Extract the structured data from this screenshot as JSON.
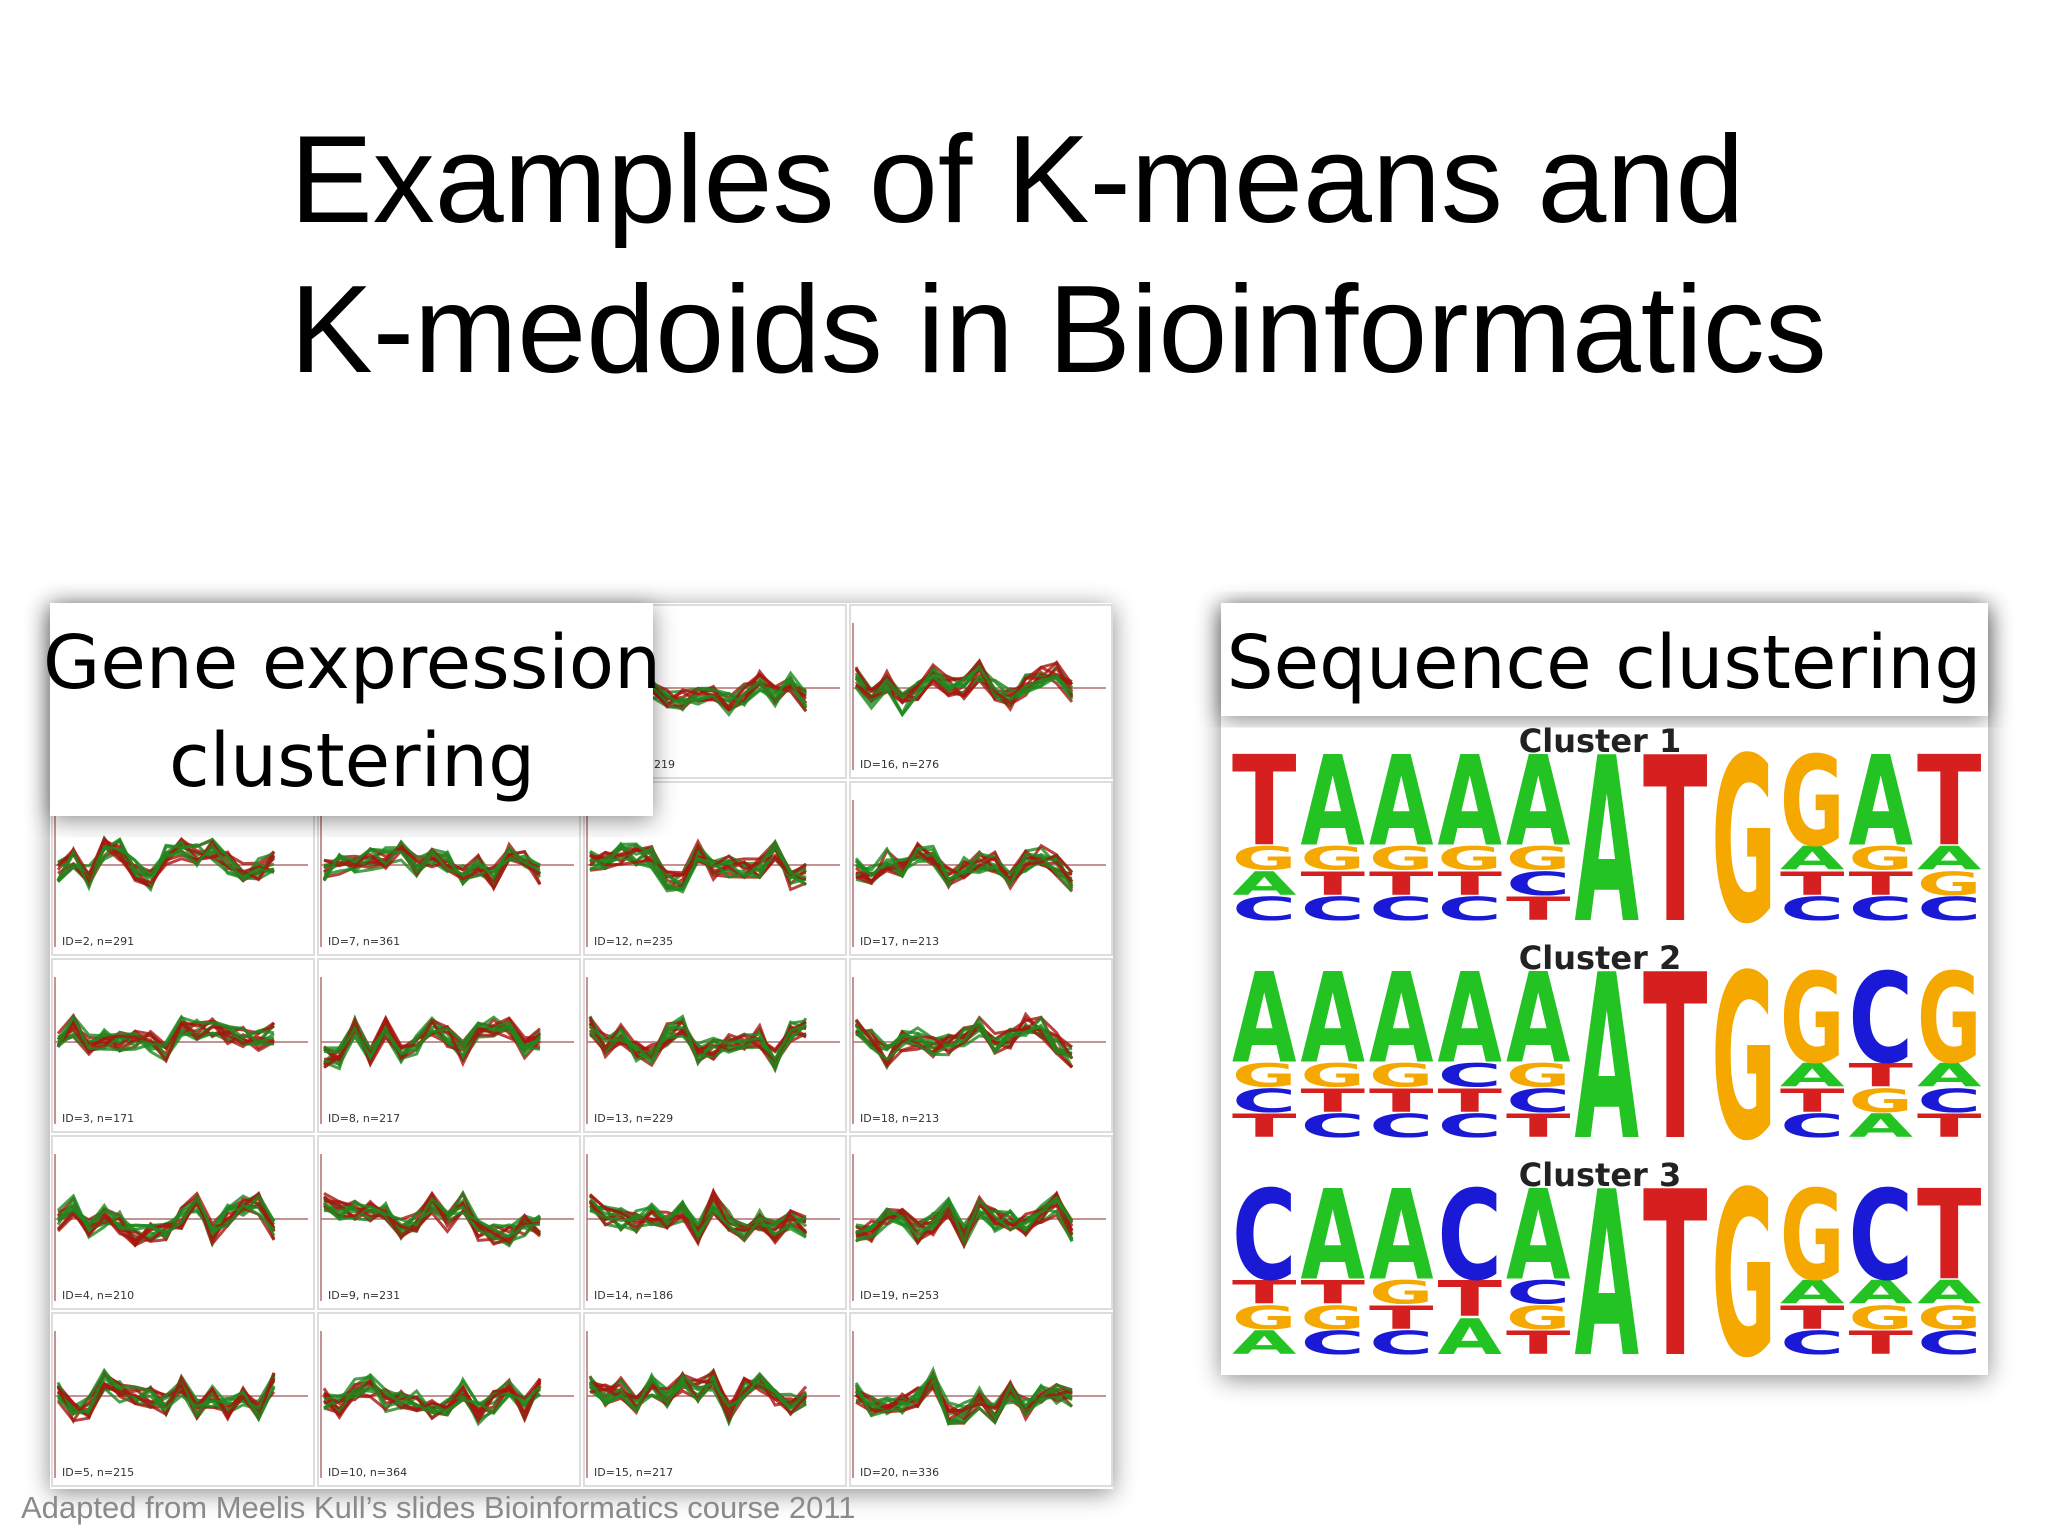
{
  "title": {
    "lines": [
      "Examples of K-means and",
      "K-medoids in Bioinformatics"
    ]
  },
  "left_panel": {
    "heading": {
      "lines": [
        "Gene expression",
        "clustering"
      ]
    },
    "cell_labels": [
      [
        null,
        null,
        "219",
        "ID=16, n=276"
      ],
      [
        "ID=2, n=291",
        "ID=7, n=361",
        "ID=12, n=235",
        "ID=17, n=213"
      ],
      [
        "ID=3, n=171",
        "ID=8, n=217",
        "ID=13, n=229",
        "ID=18, n=213"
      ],
      [
        "ID=4, n=210",
        "ID=9, n=231",
        "ID=14, n=186",
        "ID=19, n=253"
      ],
      [
        "ID=5, n=215",
        "ID=10, n=364",
        "ID=15, n=217",
        "ID=20, n=336"
      ]
    ]
  },
  "right_panel": {
    "heading": "Sequence clustering",
    "clusters": [
      {
        "label": "Cluster 1",
        "columns": [
          [
            "T",
            "G",
            "A",
            "C"
          ],
          [
            "A",
            "G",
            "T",
            "C"
          ],
          [
            "A",
            "G",
            "T",
            "C"
          ],
          [
            "A",
            "G",
            "T",
            "C"
          ],
          [
            "A",
            "G",
            "C",
            "T"
          ],
          [
            "A"
          ],
          [
            "T"
          ],
          [
            "G"
          ],
          [
            "G",
            "A",
            "T",
            "C"
          ],
          [
            "A",
            "G",
            "T",
            "C"
          ],
          [
            "T",
            "A",
            "G",
            "C"
          ]
        ]
      },
      {
        "label": "Cluster 2",
        "columns": [
          [
            "A",
            "G",
            "C",
            "T"
          ],
          [
            "A",
            "G",
            "T",
            "C"
          ],
          [
            "A",
            "G",
            "T",
            "C"
          ],
          [
            "A",
            "C",
            "T",
            "C"
          ],
          [
            "A",
            "G",
            "C",
            "T"
          ],
          [
            "A"
          ],
          [
            "T"
          ],
          [
            "G"
          ],
          [
            "G",
            "A",
            "T",
            "C"
          ],
          [
            "C",
            "T",
            "G",
            "A"
          ],
          [
            "G",
            "A",
            "C",
            "T"
          ]
        ]
      },
      {
        "label": "Cluster 3",
        "columns": [
          [
            "C",
            "T",
            "G",
            "A"
          ],
          [
            "A",
            "T",
            "G",
            "C"
          ],
          [
            "A",
            "G",
            "T",
            "C"
          ],
          [
            "C",
            "T",
            "A"
          ],
          [
            "A",
            "C",
            "G",
            "T"
          ],
          [
            "A"
          ],
          [
            "T"
          ],
          [
            "G"
          ],
          [
            "G",
            "A",
            "T",
            "C"
          ],
          [
            "C",
            "A",
            "G",
            "T"
          ],
          [
            "T",
            "A",
            "G",
            "C"
          ]
        ]
      }
    ]
  },
  "footer": "Adapted from Meelis Kull’s slides Bioinformatics course 2011"
}
